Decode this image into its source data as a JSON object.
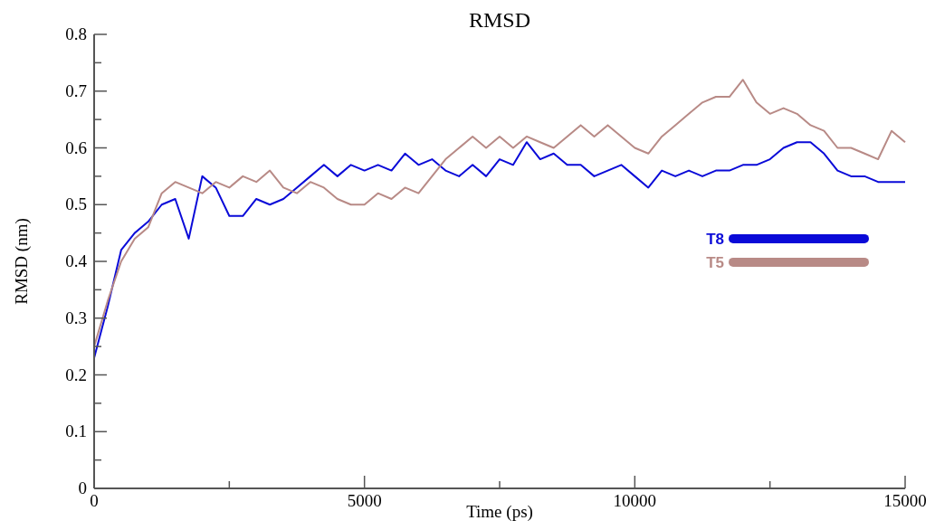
{
  "chart_data": {
    "type": "line",
    "title": "RMSD",
    "xlabel": "Time (ps)",
    "ylabel": "RMSD (nm)",
    "xlim": [
      0,
      15000
    ],
    "xticks": [
      0,
      {
        "value": 2500,
        "label": null
      },
      5000,
      {
        "value": 7500,
        "label": null
      },
      10000,
      {
        "value": 12500,
        "label": null
      },
      15000
    ],
    "ylim": [
      0,
      0.8
    ],
    "yticks": [
      0,
      {
        "value": 0.05,
        "label": null
      },
      0.1,
      {
        "value": 0.15,
        "label": null
      },
      0.2,
      {
        "value": 0.25,
        "label": null
      },
      0.3,
      {
        "value": 0.35,
        "label": null
      },
      0.4,
      {
        "value": 0.45,
        "label": null
      },
      0.5,
      {
        "value": 0.55,
        "label": null
      },
      0.6,
      {
        "value": 0.65,
        "label": null
      },
      0.7,
      {
        "value": 0.75,
        "label": null
      },
      0.8
    ],
    "x": [
      0,
      250,
      500,
      750,
      1000,
      1250,
      1500,
      1750,
      2000,
      2250,
      2500,
      2750,
      3000,
      3250,
      3500,
      3750,
      4000,
      4250,
      4500,
      4750,
      5000,
      5250,
      5500,
      5750,
      6000,
      6250,
      6500,
      6750,
      7000,
      7250,
      7500,
      7750,
      8000,
      8250,
      8500,
      8750,
      9000,
      9250,
      9500,
      9750,
      10000,
      10250,
      10500,
      10750,
      11000,
      11250,
      11500,
      11750,
      12000,
      12250,
      12500,
      12750,
      13000,
      13250,
      13500,
      13750,
      14000,
      14250,
      14500,
      14750,
      15000
    ],
    "series": [
      {
        "name": "T8",
        "color": "#0a0ad8",
        "values": [
          0.23,
          0.32,
          0.42,
          0.45,
          0.47,
          0.5,
          0.51,
          0.44,
          0.55,
          0.53,
          0.48,
          0.48,
          0.51,
          0.5,
          0.51,
          0.53,
          0.55,
          0.57,
          0.55,
          0.57,
          0.56,
          0.57,
          0.56,
          0.59,
          0.57,
          0.58,
          0.56,
          0.55,
          0.57,
          0.55,
          0.58,
          0.57,
          0.61,
          0.58,
          0.59,
          0.57,
          0.57,
          0.55,
          0.56,
          0.57,
          0.55,
          0.53,
          0.56,
          0.55,
          0.56,
          0.55,
          0.56,
          0.56,
          0.57,
          0.57,
          0.58,
          0.6,
          0.61,
          0.61,
          0.59,
          0.56,
          0.55,
          0.55,
          0.54,
          0.54,
          0.54
        ]
      },
      {
        "name": "T5",
        "color": "#b88a86",
        "values": [
          0.25,
          0.33,
          0.4,
          0.44,
          0.46,
          0.52,
          0.54,
          0.53,
          0.52,
          0.54,
          0.53,
          0.55,
          0.54,
          0.56,
          0.53,
          0.52,
          0.54,
          0.53,
          0.51,
          0.5,
          0.5,
          0.52,
          0.51,
          0.53,
          0.52,
          0.55,
          0.58,
          0.6,
          0.62,
          0.6,
          0.62,
          0.6,
          0.62,
          0.61,
          0.6,
          0.62,
          0.64,
          0.62,
          0.64,
          0.62,
          0.6,
          0.59,
          0.62,
          0.64,
          0.66,
          0.68,
          0.69,
          0.69,
          0.72,
          0.68,
          0.66,
          0.67,
          0.66,
          0.64,
          0.63,
          0.6,
          0.6,
          0.59,
          0.58,
          0.63,
          0.61
        ]
      }
    ],
    "legend": "right",
    "grid": false,
    "line_style": "solid",
    "marker": "none"
  }
}
